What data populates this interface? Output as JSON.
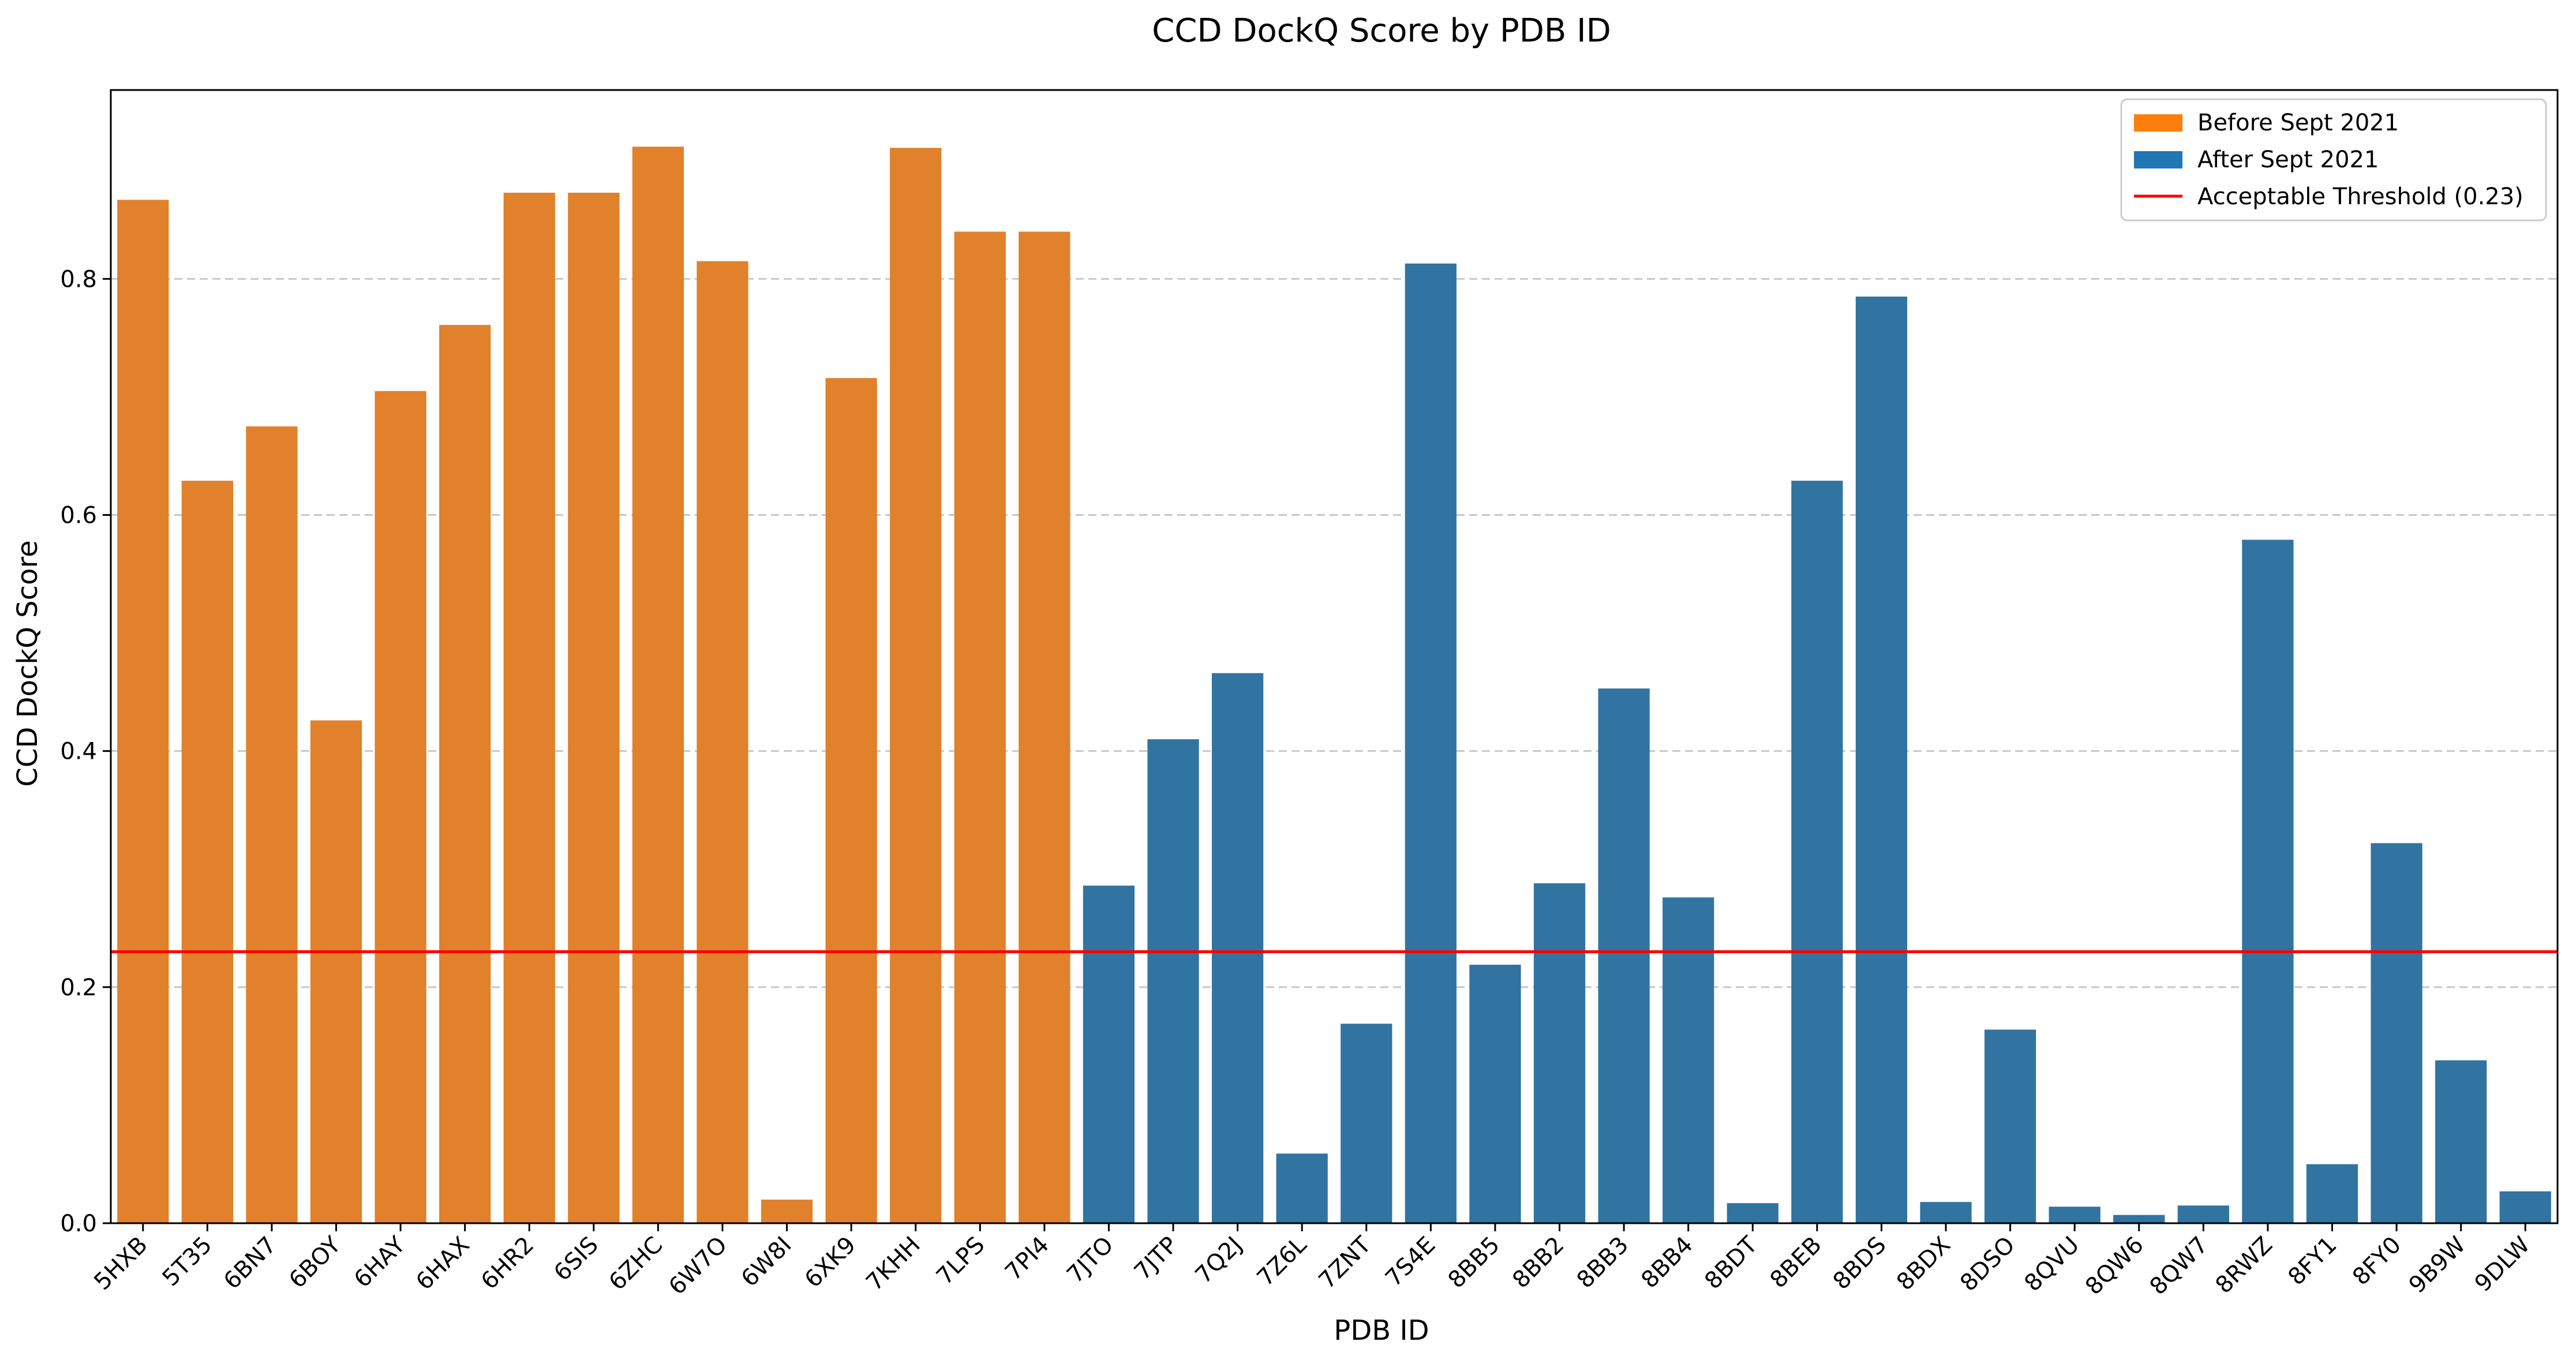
{
  "chart_data": {
    "type": "bar",
    "title": "CCD DockQ Score by PDB ID",
    "xlabel": "PDB ID",
    "ylabel": "CCD DockQ Score",
    "ylim": [
      0,
      0.96
    ],
    "yticks": [
      0.0,
      0.2,
      0.4,
      0.6,
      0.8
    ],
    "ytick_labels": [
      "0.0",
      "0.2",
      "0.4",
      "0.6",
      "0.8"
    ],
    "grid": "y-dashed",
    "legend_position": "top-right",
    "colors": {
      "before": "#e1812c",
      "after": "#3274a1",
      "before_legend": "#ff7f0e",
      "after_legend": "#1f77b4",
      "threshold": "#ff0000"
    },
    "categories": [
      "5HXB",
      "5T35",
      "6BN7",
      "6BOY",
      "6HAY",
      "6HAX",
      "6HR2",
      "6SIS",
      "6ZHC",
      "6W7O",
      "6W8I",
      "6XK9",
      "7KHH",
      "7LPS",
      "7PI4",
      "7JTO",
      "7JTP",
      "7Q2J",
      "7Z6L",
      "7ZNT",
      "7S4E",
      "8BB5",
      "8BB2",
      "8BB3",
      "8BB4",
      "8BDT",
      "8BEB",
      "8BDS",
      "8BDX",
      "8DSO",
      "8QVU",
      "8QW6",
      "8QW7",
      "8RWZ",
      "8FY1",
      "8FY0",
      "9B9W",
      "9DLW"
    ],
    "values": [
      0.867,
      0.629,
      0.675,
      0.426,
      0.705,
      0.761,
      0.873,
      0.873,
      0.912,
      0.815,
      0.02,
      0.716,
      0.911,
      0.84,
      0.84,
      0.286,
      0.41,
      0.466,
      0.059,
      0.169,
      0.813,
      0.219,
      0.288,
      0.453,
      0.276,
      0.017,
      0.629,
      0.785,
      0.018,
      0.164,
      0.014,
      0.007,
      0.015,
      0.579,
      0.05,
      0.322,
      0.138,
      0.027
    ],
    "groups": [
      "before",
      "before",
      "before",
      "before",
      "before",
      "before",
      "before",
      "before",
      "before",
      "before",
      "before",
      "before",
      "before",
      "before",
      "before",
      "after",
      "after",
      "after",
      "after",
      "after",
      "after",
      "after",
      "after",
      "after",
      "after",
      "after",
      "after",
      "after",
      "after",
      "after",
      "after",
      "after",
      "after",
      "after",
      "after",
      "after",
      "after",
      "after"
    ],
    "threshold": {
      "value": 0.23,
      "label": "Acceptable Threshold (0.23)"
    },
    "legend": [
      {
        "key": "before",
        "label": "Before Sept 2021",
        "kind": "patch"
      },
      {
        "key": "after",
        "label": "After Sept 2021",
        "kind": "patch"
      },
      {
        "key": "threshold",
        "label": "Acceptable Threshold (0.23)",
        "kind": "line"
      }
    ]
  }
}
